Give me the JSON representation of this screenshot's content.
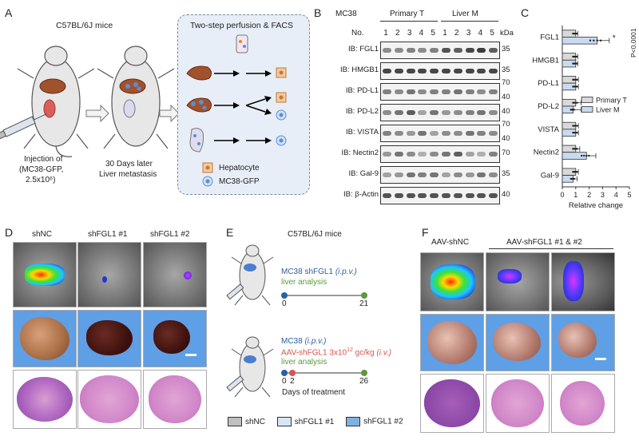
{
  "panels": {
    "A": "A",
    "B": "B",
    "C": "C",
    "D": "D",
    "E": "E",
    "F": "F"
  },
  "panel_a": {
    "mouse_strain": "C57BL/6J mice",
    "perfusion_title": "Two-step perfusion & FACS",
    "injection_line1": "Injection of",
    "injection_line2": "(MC38-GFP,",
    "injection_line3": "2.5x10⁶)",
    "later_line1": "30 Days later",
    "later_line2": "Liver metastasis",
    "legend_hepatocyte": "Hepatocyte",
    "legend_mc38": "MC38-GFP"
  },
  "panel_b": {
    "cell_line": "MC38",
    "group_primary": "Primary T",
    "group_liver": "Liver M",
    "no_label": "No.",
    "lanes": [
      "1",
      "2",
      "3",
      "4",
      "5",
      "1",
      "2",
      "3",
      "4",
      "5"
    ],
    "kda_label": "kDa",
    "rows": [
      {
        "label": "IB: FGL1",
        "kda": [
          "35"
        ]
      },
      {
        "label": "IB: HMGB1",
        "kda": [
          "35"
        ]
      },
      {
        "label": "IB: PD-L1",
        "kda": [
          "70",
          "40"
        ]
      },
      {
        "label": "IB: PD-L2",
        "kda": [
          "40"
        ]
      },
      {
        "label": "IB: VISTA",
        "kda": [
          "70",
          "40"
        ]
      },
      {
        "label": "IB: Nectin2",
        "kda": [
          "70"
        ]
      },
      {
        "label": "IB: Gal-9",
        "kda": [
          "35"
        ]
      },
      {
        "label": "IB: β-Actin",
        "kda": [
          "40"
        ]
      }
    ],
    "band_intensity": [
      [
        0.5,
        0.5,
        0.55,
        0.5,
        0.55,
        0.75,
        0.7,
        0.8,
        0.85,
        0.7
      ],
      [
        0.8,
        0.8,
        0.8,
        0.8,
        0.8,
        0.8,
        0.8,
        0.8,
        0.8,
        0.8
      ],
      [
        0.55,
        0.5,
        0.6,
        0.5,
        0.55,
        0.55,
        0.6,
        0.55,
        0.5,
        0.55
      ],
      [
        0.5,
        0.6,
        0.7,
        0.4,
        0.6,
        0.45,
        0.5,
        0.55,
        0.6,
        0.5
      ],
      [
        0.55,
        0.5,
        0.45,
        0.6,
        0.4,
        0.5,
        0.5,
        0.6,
        0.55,
        0.5
      ],
      [
        0.45,
        0.6,
        0.5,
        0.35,
        0.5,
        0.6,
        0.7,
        0.4,
        0.35,
        0.55
      ],
      [
        0.4,
        0.45,
        0.6,
        0.55,
        0.6,
        0.4,
        0.5,
        0.45,
        0.6,
        0.5
      ],
      [
        0.75,
        0.75,
        0.75,
        0.75,
        0.75,
        0.75,
        0.75,
        0.75,
        0.75,
        0.75
      ]
    ]
  },
  "chart_data": {
    "type": "bar",
    "orientation": "horizontal",
    "categories": [
      "FGL1",
      "HMGB1",
      "PD-L1",
      "PD-L2",
      "VISTA",
      "Nectin2",
      "Gal-9"
    ],
    "series": [
      {
        "name": "Primary T",
        "values": [
          1.0,
          1.0,
          1.0,
          1.0,
          1.0,
          1.0,
          1.0
        ],
        "errors": [
          0.15,
          0.15,
          0.2,
          0.4,
          0.2,
          0.3,
          0.2
        ],
        "color": "#d9d9d9"
      },
      {
        "name": "Liver M",
        "values": [
          2.6,
          1.0,
          1.0,
          0.8,
          1.0,
          1.8,
          0.8
        ],
        "errors": [
          0.9,
          0.15,
          0.2,
          0.6,
          0.2,
          0.7,
          0.3
        ],
        "color": "#c9dbf0"
      }
    ],
    "xlabel": "Relative change",
    "xlim": [
      0,
      5
    ],
    "xticks": [
      "0",
      "1",
      "2",
      "3",
      "4",
      "5"
    ],
    "annotation": "P<0.0001",
    "annotation_star": "*",
    "legend_position": "bottom-right"
  },
  "panel_d": {
    "labels": [
      "shNC",
      "shFGL1 #1",
      "shFGL1 #2"
    ]
  },
  "panel_e": {
    "mouse_strain": "C57BL/6J mice",
    "exp1_line1": "MC38 shFGL1",
    "exp1_route": "(i.p.v.)",
    "exp1_line2": "liver analysis",
    "exp1_start": "0",
    "exp1_end": "21",
    "exp2_line1": "MC38",
    "exp2_route": "(i.p.v.)",
    "exp2_line2_a": "AAV-shFGL1 3x10",
    "exp2_line2_sup": "12",
    "exp2_line2_b": " gc/kg",
    "exp2_line2_route": "(i.v.)",
    "exp2_line3": "liver analysis",
    "exp2_t0": "0",
    "exp2_t1": "2",
    "exp2_end": "26",
    "days_label": "Days of treatment",
    "colors": {
      "blue": "#2b5ea8",
      "red": "#d9534f",
      "green": "#5c9a3a"
    }
  },
  "legend_bottom": {
    "items": [
      "shNC",
      "shFGL1 #1",
      "shFGL1 #2"
    ],
    "colors": [
      "#bfbfbf",
      "#d6e6f5",
      "#7fb1e3"
    ]
  },
  "panel_f": {
    "label_left": "AAV-shNC",
    "label_right": "AAV-shFGL1 #1 & #2"
  }
}
